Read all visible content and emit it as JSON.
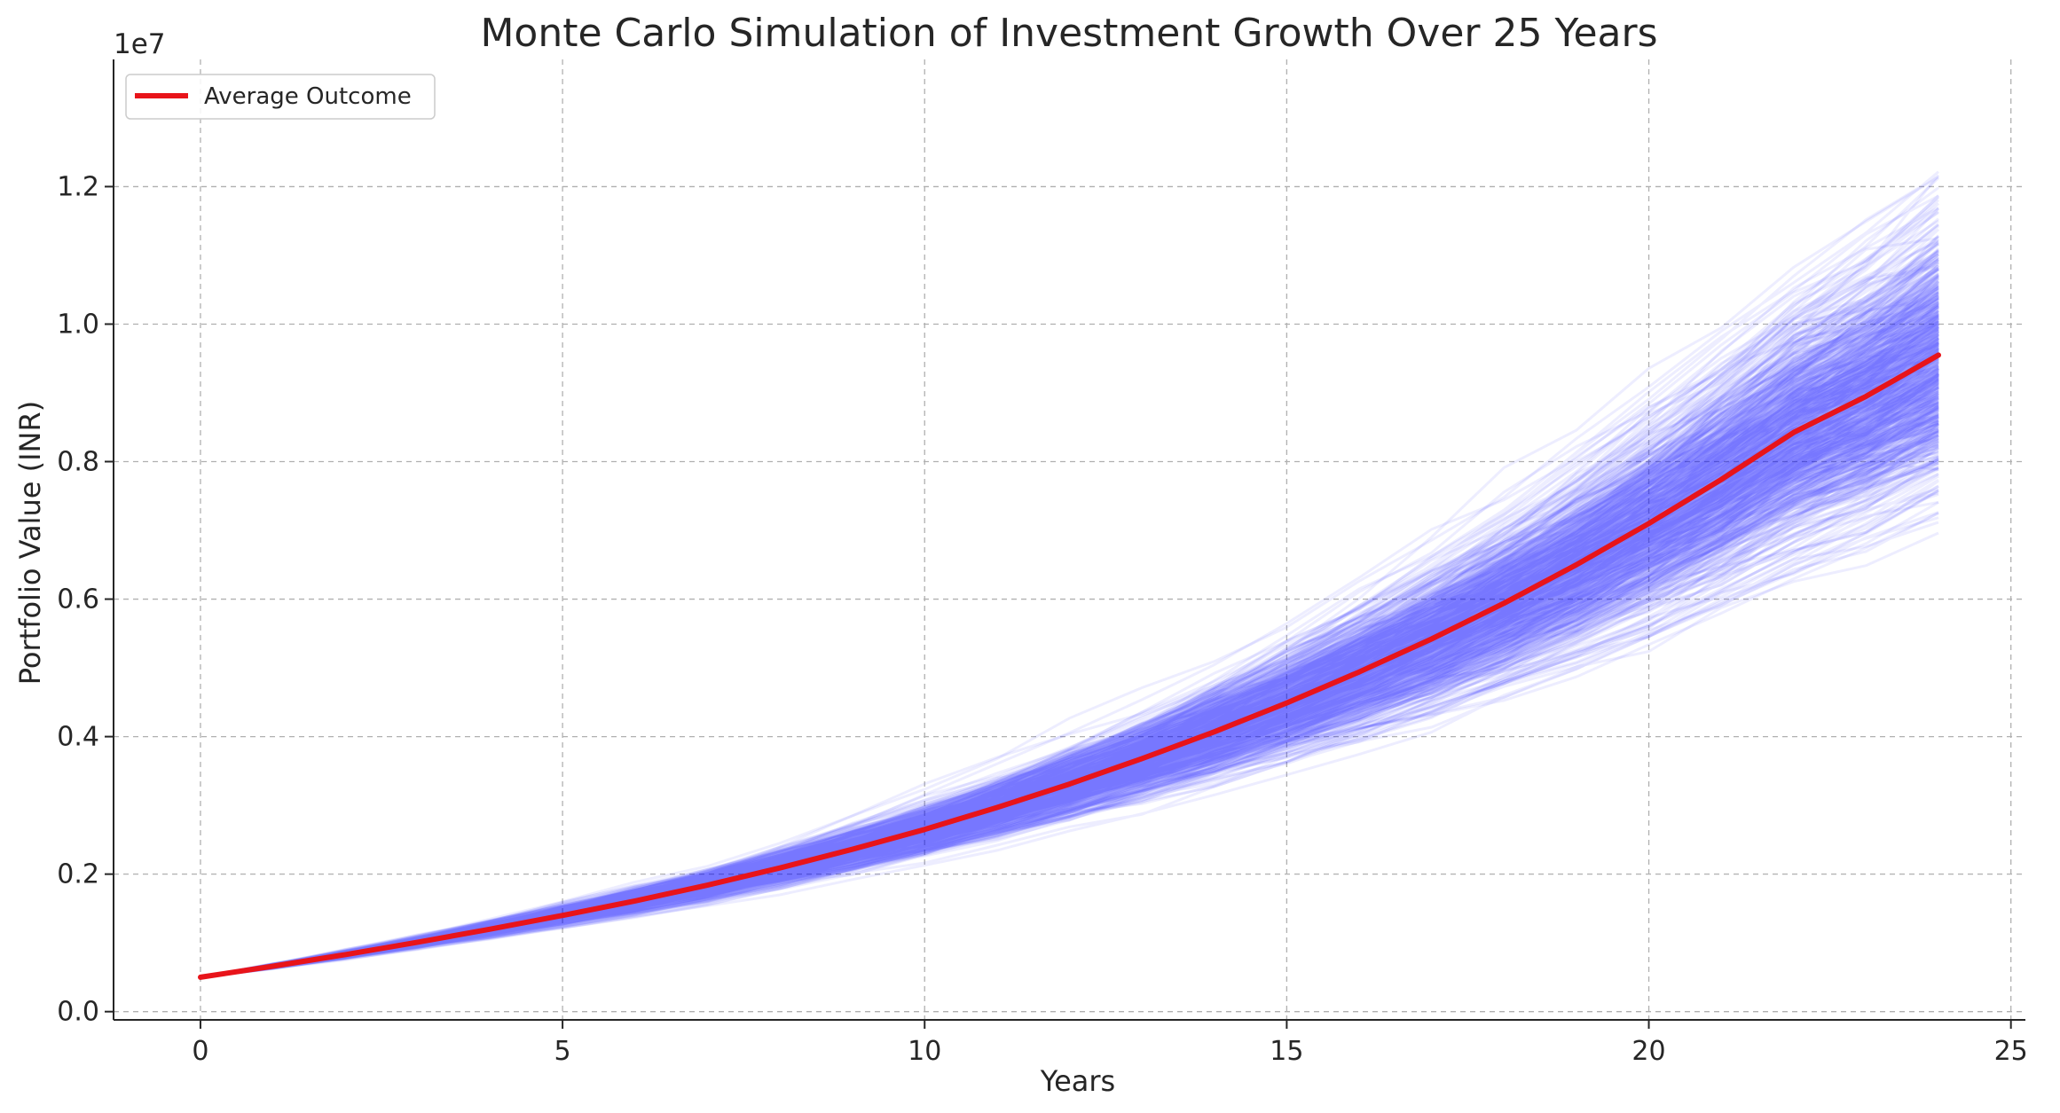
{
  "chart_data": {
    "type": "line",
    "title": "Monte Carlo Simulation of Investment Growth Over 25 Years",
    "xlabel": "Years",
    "ylabel": "Portfolio Value (INR)",
    "y_offset_label": "1e7",
    "xlim": [
      -1.2,
      25.2
    ],
    "ylim": [
      -0.012,
      1.385
    ],
    "y_scale_factor": 10000000,
    "x_ticks": [
      {
        "value": 0,
        "label": "0"
      },
      {
        "value": 5,
        "label": "5"
      },
      {
        "value": 10,
        "label": "10"
      },
      {
        "value": 15,
        "label": "15"
      },
      {
        "value": 20,
        "label": "20"
      },
      {
        "value": 25,
        "label": "25"
      }
    ],
    "y_ticks": [
      {
        "value": 0.0,
        "label": "0.0"
      },
      {
        "value": 0.2,
        "label": "0.2"
      },
      {
        "value": 0.4,
        "label": "0.4"
      },
      {
        "value": 0.6,
        "label": "0.6"
      },
      {
        "value": 0.8,
        "label": "0.8"
      },
      {
        "value": 1.0,
        "label": "1.0"
      },
      {
        "value": 1.2,
        "label": "1.2"
      }
    ],
    "grid": true,
    "legend": {
      "placement": "top-left",
      "entries": [
        {
          "label": "Average Outcome",
          "color": "#e8141a"
        }
      ]
    },
    "x": [
      0,
      1,
      2,
      3,
      4,
      5,
      6,
      7,
      8,
      9,
      10,
      11,
      12,
      13,
      14,
      15,
      16,
      17,
      18,
      19,
      20,
      21,
      22,
      23,
      24
    ],
    "series": [
      {
        "name": "Average Outcome",
        "color": "#e8141a",
        "values": [
          0.05,
          0.066,
          0.083,
          0.101,
          0.12,
          0.14,
          0.161,
          0.184,
          0.209,
          0.236,
          0.265,
          0.297,
          0.331,
          0.368,
          0.407,
          0.449,
          0.494,
          0.542,
          0.594,
          0.65,
          0.71,
          0.774,
          0.8425,
          0.895,
          0.955
        ]
      }
    ],
    "simulations": {
      "count": 1000,
      "color": "#0000ff",
      "opacity": 0.07,
      "start_value": 0.05,
      "final_value_range": [
        0.72,
        1.32
      ]
    }
  }
}
